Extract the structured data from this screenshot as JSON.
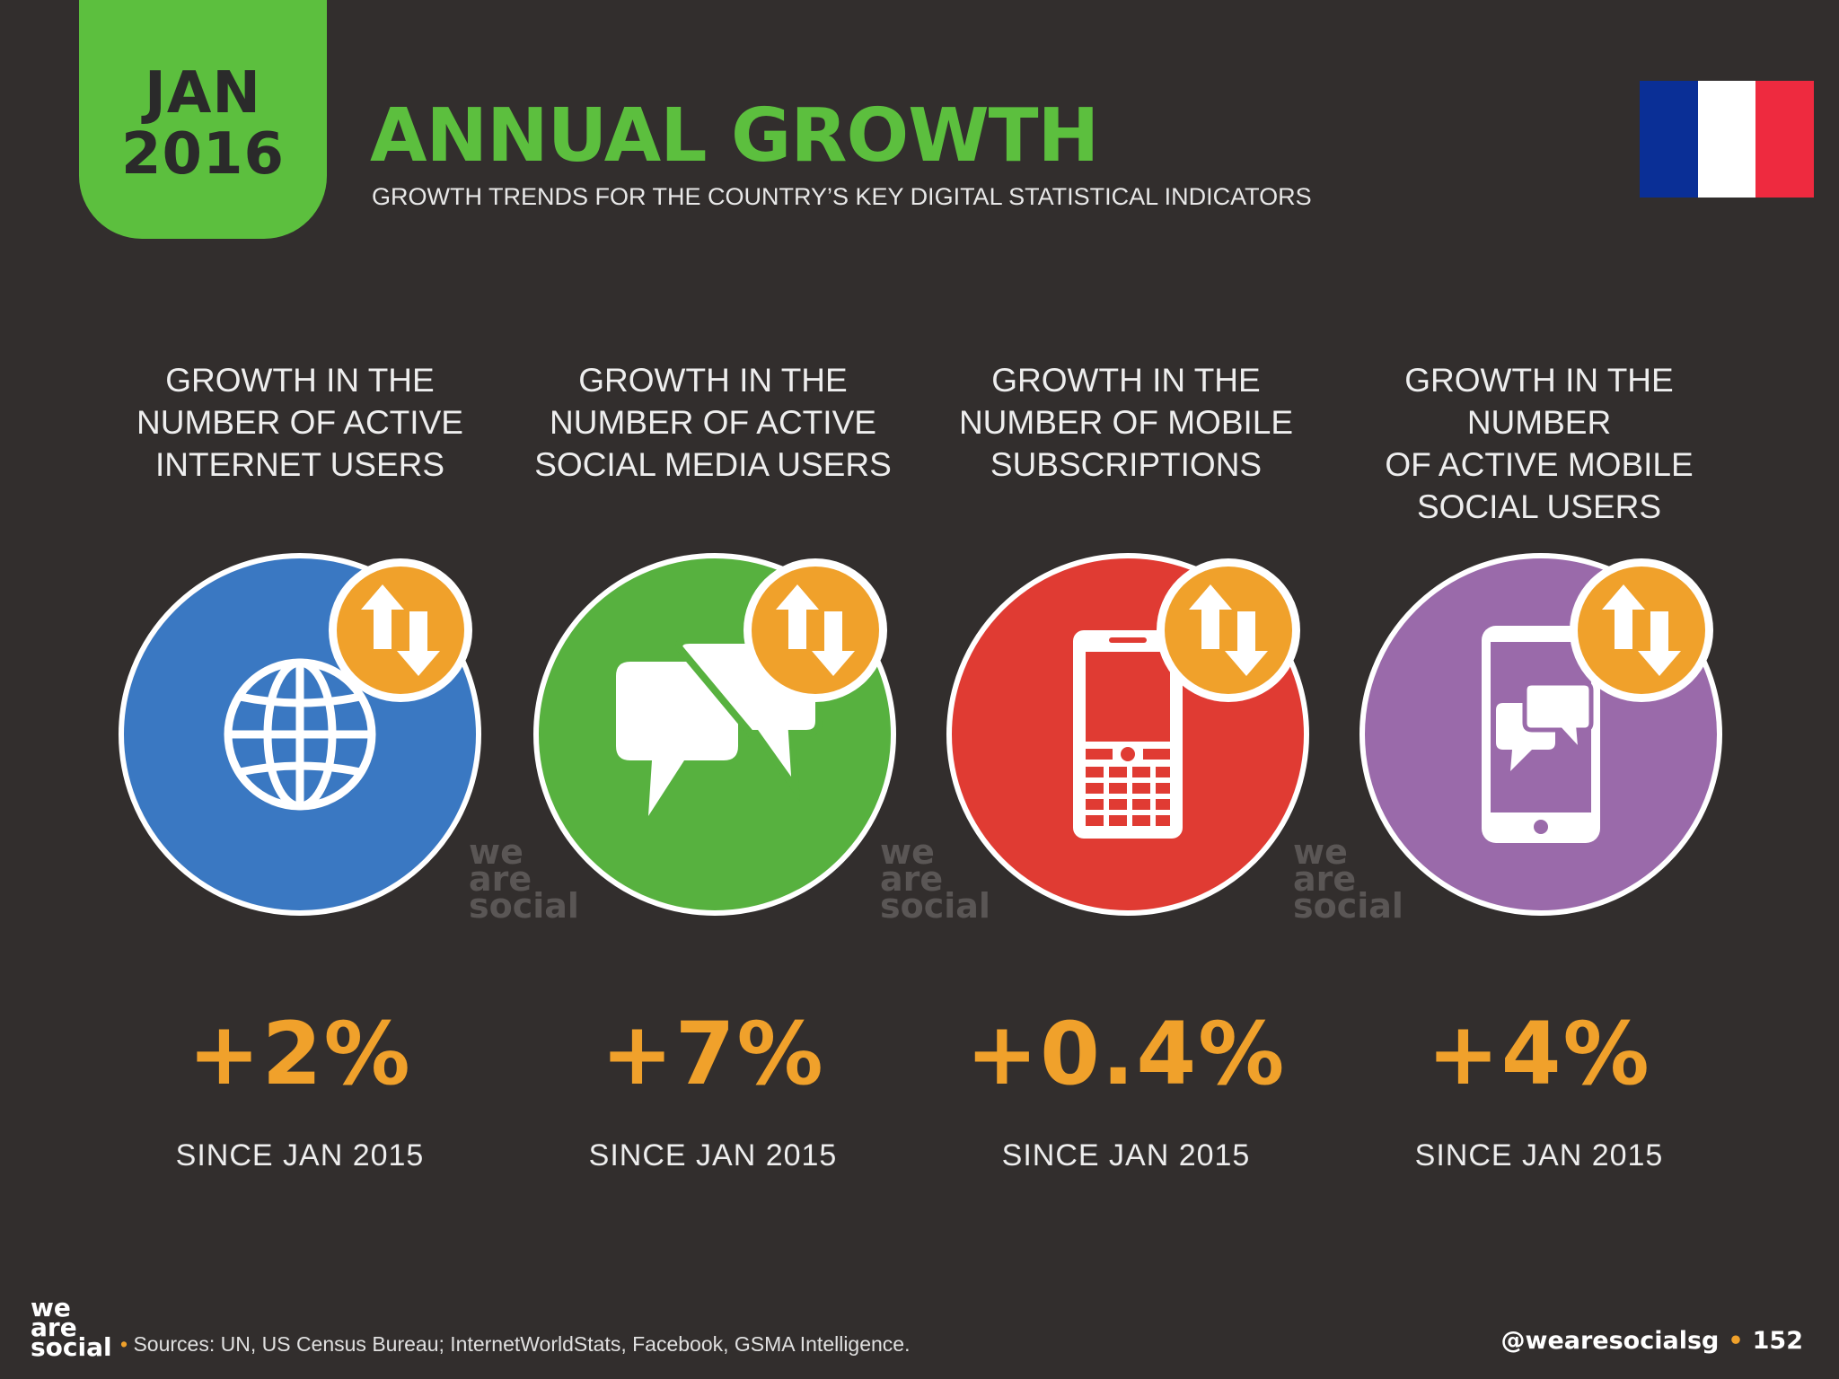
{
  "header": {
    "month": "JAN",
    "year": "2016",
    "title": "ANNUAL GROWTH",
    "subtitle": "GROWTH TRENDS FOR THE COUNTRY’S KEY DIGITAL STATISTICAL INDICATORS",
    "flag_colors": [
      "#0a2f96",
      "#ffffff",
      "#ee2a3f"
    ]
  },
  "columns": [
    {
      "heading": [
        "GROWTH IN THE",
        "NUMBER OF ACTIVE",
        "INTERNET USERS"
      ],
      "icon": "globe-icon",
      "color": "#3a78c2",
      "value": "+2%",
      "since": "SINCE JAN 2015"
    },
    {
      "heading": [
        "GROWTH IN THE",
        "NUMBER OF ACTIVE",
        "SOCIAL MEDIA USERS"
      ],
      "icon": "chat-bubbles-icon",
      "color": "#57b13f",
      "value": "+7%",
      "since": "SINCE JAN 2015"
    },
    {
      "heading": [
        "GROWTH IN THE",
        "NUMBER OF MOBILE",
        "SUBSCRIPTIONS"
      ],
      "icon": "mobile-phone-icon",
      "color": "#e03b33",
      "value": "+0.4%",
      "since": "SINCE JAN 2015"
    },
    {
      "heading": [
        "GROWTH IN THE NUMBER",
        "OF ACTIVE MOBILE",
        "SOCIAL USERS"
      ],
      "icon": "smartphone-chat-icon",
      "color": "#9a6aaa",
      "value": "+4%",
      "since": "SINCE JAN 2015"
    }
  ],
  "watermark": [
    "we",
    "are",
    "social"
  ],
  "footer": {
    "logo": [
      "we",
      "are",
      "social"
    ],
    "bullet": "•",
    "sources": "Sources: UN, US Census Bureau; InternetWorldStats, Facebook, GSMA Intelligence.",
    "handle": "@wearesocialsg",
    "page": "152"
  },
  "accent_color": "#f0a12b",
  "brand_green": "#5cbf3e"
}
